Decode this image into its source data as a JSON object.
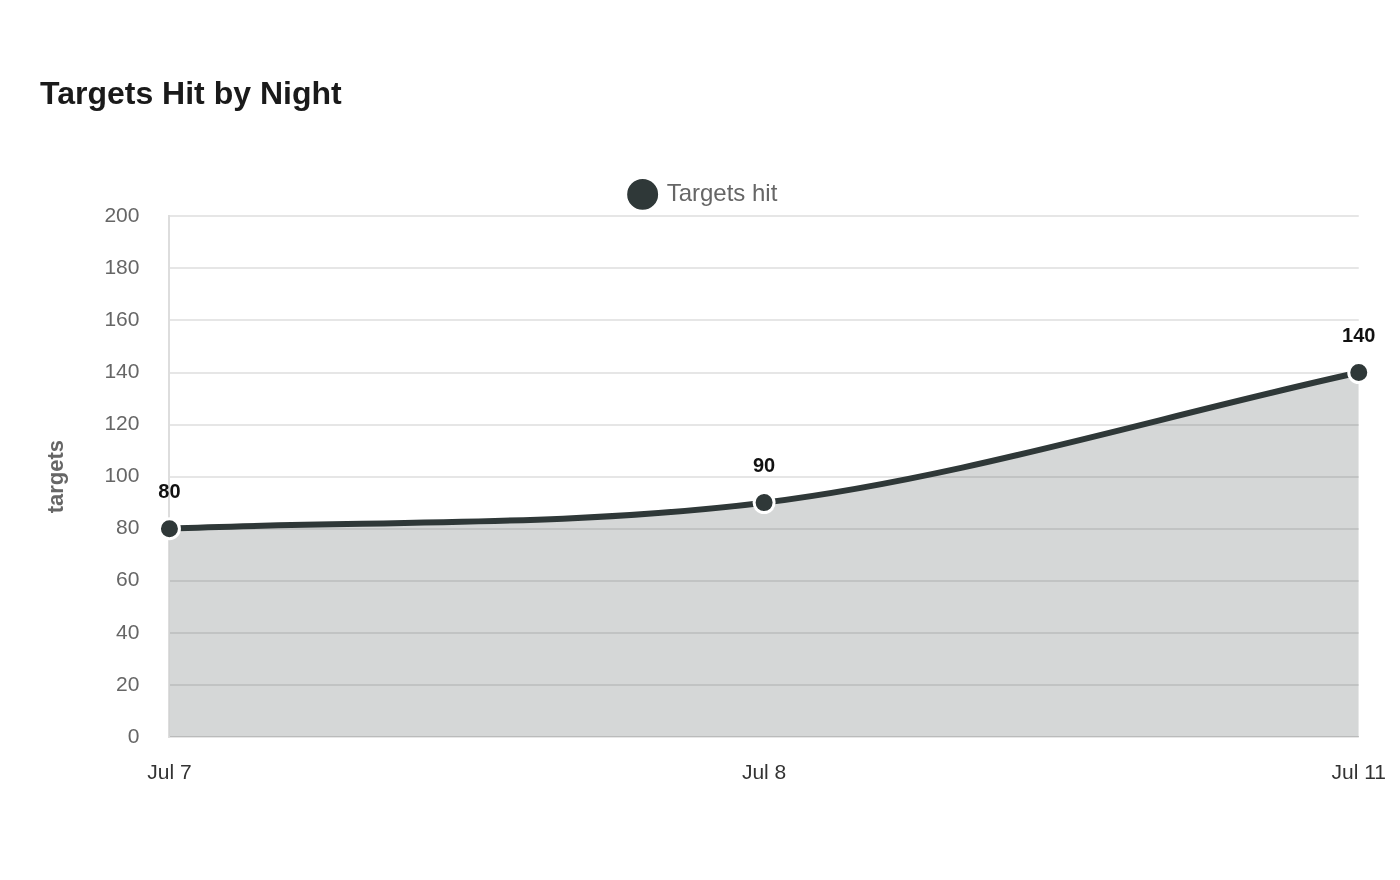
{
  "chart_data": {
    "type": "area",
    "title": "Targets Hit by Night",
    "ylabel": "targets",
    "categories": [
      "Jul 7",
      "Jul 8",
      "Jul 11"
    ],
    "series": [
      {
        "name": "Targets hit",
        "color": "#2f3838",
        "values": [
          80,
          90,
          140
        ]
      }
    ],
    "ylim": [
      0,
      200
    ],
    "yticks": [
      0,
      20,
      40,
      60,
      80,
      100,
      120,
      140,
      160,
      180,
      200
    ],
    "grid": "y",
    "legend": "top",
    "marker": "circle",
    "data_labels": true
  }
}
